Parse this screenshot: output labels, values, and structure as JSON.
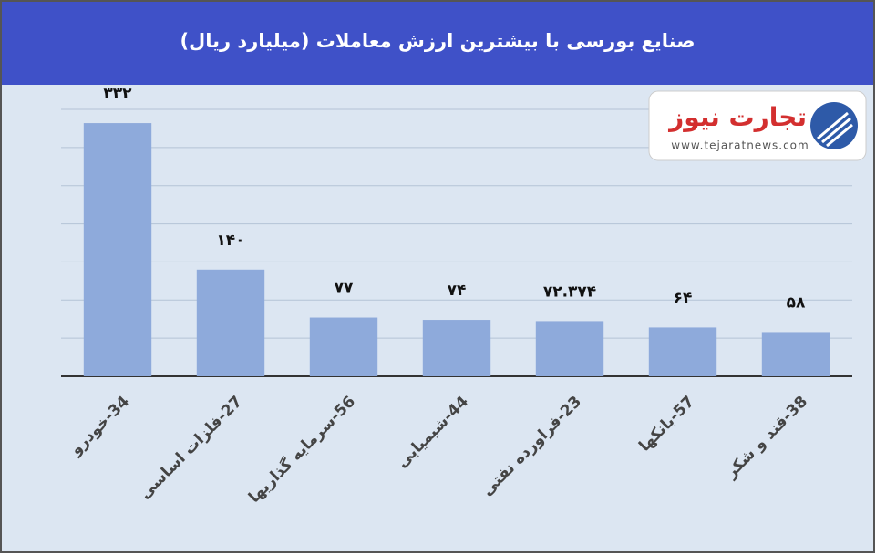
{
  "chart_data": {
    "type": "bar",
    "title": "صنایع بورسی با بیشترین ارزش معاملات  (میلیارد ریال)",
    "categories": [
      "34-خودرو",
      "27-فلزات اساسی",
      "56-سرمایه گذاریها",
      "44-شیمیایی",
      "23-فراورده نفتی",
      "57-بانکها",
      "38-قند و شکر"
    ],
    "values": [
      332,
      140,
      77,
      74,
      72.374,
      64,
      58
    ],
    "value_labels": [
      "۳۳۲",
      "۱۴۰",
      "۷۷",
      "۷۴",
      "۷۲.۳۷۴",
      "۶۴",
      "۵۸"
    ],
    "color": "#8eaadb",
    "ylim": [
      0,
      350
    ],
    "yticks": [
      0,
      50,
      100,
      150,
      200,
      250,
      300,
      350
    ],
    "grid": true
  },
  "logo": {
    "name": "تجارت نیوز",
    "url": "www.tejaratnews.com"
  }
}
